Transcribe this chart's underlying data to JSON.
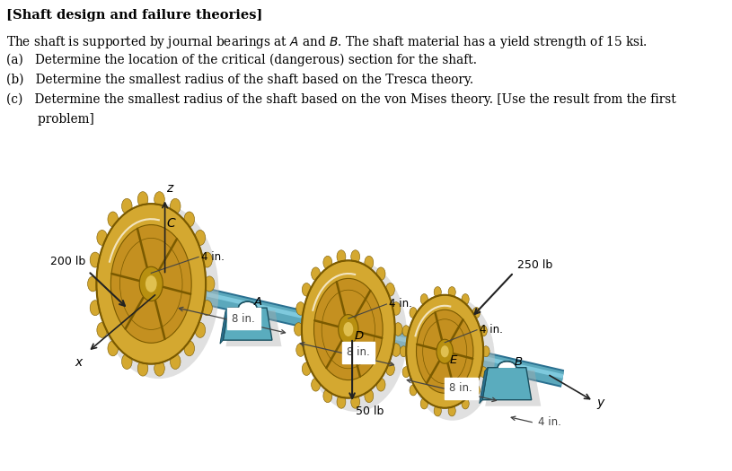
{
  "bg": "#ffffff",
  "shaft_color": "#5ba8bc",
  "shaft_highlight": "#8dd8ec",
  "shaft_dark": "#2a7090",
  "gear_outer": "#d4a830",
  "gear_mid": "#c49020",
  "gear_hub": "#c8a828",
  "gear_edge": "#7a5a00",
  "bearing_color": "#5aacbe",
  "bearing_dark": "#2a7090",
  "bearing_edge": "#1a5060",
  "shadow_color": "#b8b8b8",
  "arrow_color": "#222222",
  "dim_color": "#444444",
  "title": "[Shaft design and failure theories]",
  "line1": "The shaft is supported by journal bearings at $\\mathit{A}$ and $\\mathit{B}$. The shaft material has a yield strength of 15 ksi.",
  "line2a": "(a)   Determine the location of the critical (dangerous) section for the shaft.",
  "line2b": "(b)   Determine the smallest radius of the shaft based on the Tresca theory.",
  "line2c": "(c)   Determine the smallest radius of the shaft based on the von Mises theory. [Use the result from the first",
  "line2d": "        problem]"
}
